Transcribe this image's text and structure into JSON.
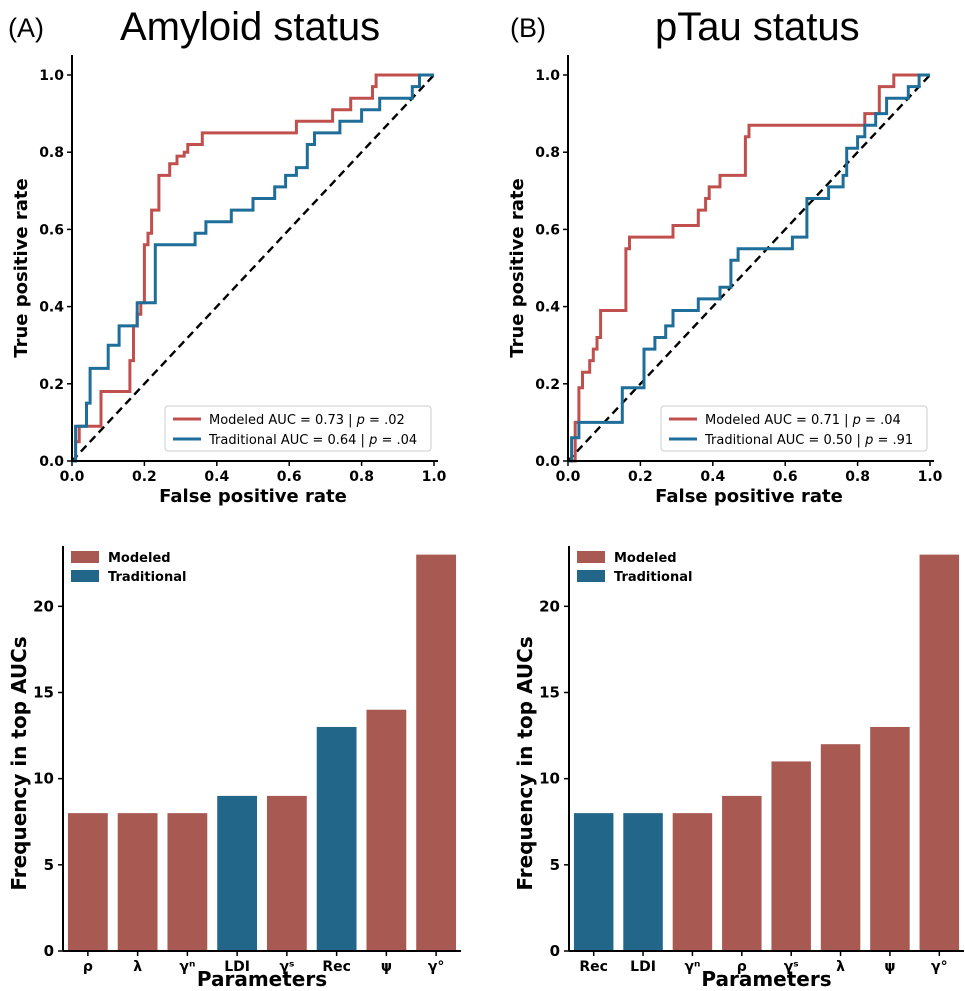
{
  "panels": {
    "a": {
      "letter": "(A)",
      "title": "Amyloid status"
    },
    "b": {
      "letter": "(B)",
      "title": "pTau status"
    }
  },
  "colors": {
    "modeled": "#c0504d",
    "traditional": "#1f6e9a",
    "modeled_bar": "#a85a52",
    "traditional_bar": "#22678a",
    "chance": "#000000"
  },
  "chart_data": [
    {
      "id": "roc_a",
      "type": "line",
      "panel": "A",
      "xlabel": "False positive rate",
      "ylabel": "True positive rate",
      "xlim": [
        0,
        1
      ],
      "ylim": [
        0,
        1
      ],
      "xticks": [
        "0.0",
        "0.2",
        "0.4",
        "0.6",
        "0.8",
        "1.0"
      ],
      "yticks": [
        "0.0",
        "0.2",
        "0.4",
        "0.6",
        "0.8",
        "1.0"
      ],
      "legend_position": "lower-right",
      "series": [
        {
          "name": "Modeled AUC = 0.73 | p = .02",
          "legend_parts": [
            "Modeled AUC = 0.73 | ",
            "p",
            " = .02"
          ],
          "x": [
            0,
            0.01,
            0.01,
            0.02,
            0.02,
            0.05,
            0.05,
            0.08,
            0.08,
            0.16,
            0.16,
            0.17,
            0.17,
            0.18,
            0.18,
            0.19,
            0.19,
            0.2,
            0.2,
            0.21,
            0.21,
            0.22,
            0.22,
            0.24,
            0.24,
            0.27,
            0.27,
            0.29,
            0.29,
            0.31,
            0.31,
            0.32,
            0.32,
            0.34,
            0.34,
            0.36,
            0.36,
            0.62,
            0.62,
            0.72,
            0.72,
            0.77,
            0.77,
            0.83,
            0.83,
            0.84,
            0.84,
            1.0
          ],
          "y": [
            0,
            0,
            0.05,
            0.05,
            0.09,
            0.09,
            0.09,
            0.09,
            0.18,
            0.18,
            0.26,
            0.26,
            0.35,
            0.35,
            0.38,
            0.38,
            0.41,
            0.41,
            0.56,
            0.56,
            0.59,
            0.59,
            0.65,
            0.65,
            0.74,
            0.74,
            0.77,
            0.77,
            0.79,
            0.79,
            0.8,
            0.8,
            0.82,
            0.82,
            0.82,
            0.82,
            0.85,
            0.85,
            0.88,
            0.88,
            0.91,
            0.91,
            0.94,
            0.94,
            0.97,
            0.97,
            1.0,
            1.0
          ]
        },
        {
          "name": "Traditional AUC = 0.64 | p = .04",
          "legend_parts": [
            "Traditional AUC = 0.64 | ",
            "p",
            " = .04"
          ],
          "x": [
            0,
            0.01,
            0.01,
            0.04,
            0.04,
            0.05,
            0.05,
            0.1,
            0.1,
            0.13,
            0.13,
            0.18,
            0.18,
            0.23,
            0.23,
            0.34,
            0.34,
            0.37,
            0.37,
            0.44,
            0.44,
            0.5,
            0.5,
            0.56,
            0.56,
            0.59,
            0.59,
            0.62,
            0.62,
            0.65,
            0.65,
            0.67,
            0.67,
            0.74,
            0.74,
            0.8,
            0.8,
            0.85,
            0.85,
            0.88,
            0.88,
            0.94,
            0.94,
            0.96,
            0.96,
            1.0
          ],
          "y": [
            0,
            0,
            0.09,
            0.09,
            0.15,
            0.15,
            0.24,
            0.24,
            0.3,
            0.3,
            0.35,
            0.35,
            0.41,
            0.41,
            0.56,
            0.56,
            0.59,
            0.59,
            0.62,
            0.62,
            0.65,
            0.65,
            0.68,
            0.68,
            0.71,
            0.71,
            0.74,
            0.74,
            0.76,
            0.76,
            0.82,
            0.82,
            0.85,
            0.85,
            0.88,
            0.88,
            0.91,
            0.91,
            0.94,
            0.94,
            0.94,
            0.94,
            0.97,
            0.97,
            1.0,
            1.0
          ]
        }
      ]
    },
    {
      "id": "roc_b",
      "type": "line",
      "panel": "B",
      "xlabel": "False positive rate",
      "ylabel": "True positive rate",
      "xlim": [
        0,
        1
      ],
      "ylim": [
        0,
        1
      ],
      "xticks": [
        "0.0",
        "0.2",
        "0.4",
        "0.6",
        "0.8",
        "1.0"
      ],
      "yticks": [
        "0.0",
        "0.2",
        "0.4",
        "0.6",
        "0.8",
        "1.0"
      ],
      "legend_position": "lower-right",
      "series": [
        {
          "name": "Modeled AUC = 0.71 | p = .04",
          "legend_parts": [
            "Modeled AUC = 0.71 | ",
            "p",
            " = .04"
          ],
          "x": [
            0,
            0.02,
            0.02,
            0.03,
            0.03,
            0.04,
            0.04,
            0.06,
            0.06,
            0.07,
            0.07,
            0.08,
            0.08,
            0.09,
            0.09,
            0.16,
            0.16,
            0.17,
            0.17,
            0.29,
            0.29,
            0.36,
            0.36,
            0.38,
            0.38,
            0.39,
            0.39,
            0.41,
            0.41,
            0.42,
            0.42,
            0.49,
            0.49,
            0.5,
            0.5,
            0.82,
            0.82,
            0.86,
            0.86,
            0.9,
            0.9,
            1.0
          ],
          "y": [
            0,
            0,
            0.1,
            0.1,
            0.19,
            0.19,
            0.23,
            0.23,
            0.26,
            0.26,
            0.29,
            0.29,
            0.32,
            0.32,
            0.39,
            0.39,
            0.55,
            0.55,
            0.58,
            0.58,
            0.61,
            0.61,
            0.65,
            0.65,
            0.68,
            0.68,
            0.71,
            0.71,
            0.71,
            0.71,
            0.74,
            0.74,
            0.84,
            0.84,
            0.87,
            0.87,
            0.9,
            0.9,
            0.97,
            0.97,
            1.0,
            1.0
          ]
        },
        {
          "name": "Traditional AUC = 0.50 | p = .91",
          "legend_parts": [
            "Traditional AUC = 0.50 | ",
            "p",
            " = .91"
          ],
          "x": [
            0,
            0.01,
            0.01,
            0.03,
            0.03,
            0.15,
            0.15,
            0.21,
            0.21,
            0.24,
            0.24,
            0.27,
            0.27,
            0.29,
            0.29,
            0.36,
            0.36,
            0.42,
            0.42,
            0.45,
            0.45,
            0.47,
            0.47,
            0.51,
            0.51,
            0.62,
            0.62,
            0.66,
            0.66,
            0.72,
            0.72,
            0.76,
            0.76,
            0.77,
            0.77,
            0.8,
            0.8,
            0.82,
            0.82,
            0.85,
            0.85,
            0.88,
            0.88,
            0.94,
            0.94,
            0.97,
            0.97,
            1.0
          ],
          "y": [
            0,
            0,
            0.06,
            0.06,
            0.1,
            0.1,
            0.19,
            0.19,
            0.29,
            0.29,
            0.32,
            0.32,
            0.35,
            0.35,
            0.39,
            0.39,
            0.42,
            0.42,
            0.45,
            0.45,
            0.52,
            0.52,
            0.55,
            0.55,
            0.55,
            0.55,
            0.58,
            0.58,
            0.68,
            0.68,
            0.71,
            0.71,
            0.74,
            0.74,
            0.81,
            0.81,
            0.84,
            0.84,
            0.87,
            0.87,
            0.9,
            0.9,
            0.94,
            0.94,
            0.97,
            0.97,
            1.0,
            1.0
          ]
        }
      ]
    },
    {
      "id": "bar_a",
      "type": "bar",
      "panel": "A",
      "xlabel": "Parameters",
      "ylabel": "Frequency in top AUCs",
      "ylim": [
        0,
        23.5
      ],
      "yticks": [
        0,
        5,
        10,
        15,
        20
      ],
      "legend_position": "top-left",
      "legend": [
        "Modeled",
        "Traditional"
      ],
      "categories": [
        "ρ",
        "λ",
        "γⁿ",
        "LDI",
        "γˢ",
        "Rec",
        "ψ",
        "γ°"
      ],
      "values": [
        8,
        8,
        8,
        9,
        9,
        13,
        14,
        23
      ],
      "groups": [
        "Modeled",
        "Modeled",
        "Modeled",
        "Traditional",
        "Modeled",
        "Traditional",
        "Modeled",
        "Modeled"
      ]
    },
    {
      "id": "bar_b",
      "type": "bar",
      "panel": "B",
      "xlabel": "Parameters",
      "ylabel": "Frequency in top AUCs",
      "ylim": [
        0,
        23.5
      ],
      "yticks": [
        0,
        5,
        10,
        15,
        20
      ],
      "legend_position": "top-left",
      "legend": [
        "Modeled",
        "Traditional"
      ],
      "categories": [
        "Rec",
        "LDI",
        "γⁿ",
        "ρ",
        "γˢ",
        "λ",
        "ψ",
        "γ°"
      ],
      "values": [
        8,
        8,
        8,
        9,
        11,
        12,
        13,
        23
      ],
      "groups": [
        "Traditional",
        "Traditional",
        "Modeled",
        "Modeled",
        "Modeled",
        "Modeled",
        "Modeled",
        "Modeled"
      ]
    }
  ]
}
